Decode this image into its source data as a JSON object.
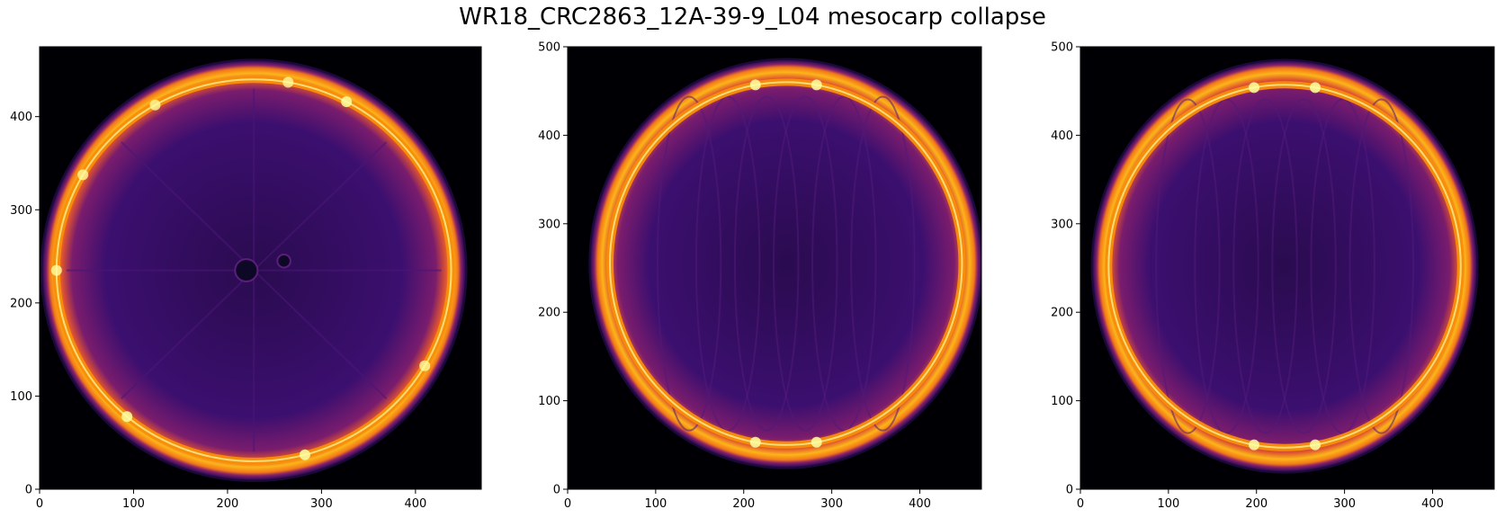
{
  "figure": {
    "title": "WR18_CRC2863_12A-39-9_L04 mesocarp collapse"
  },
  "chart_data": [
    {
      "type": "heatmap",
      "title": "",
      "xlabel": "",
      "ylabel": "",
      "xlim": [
        0,
        470
      ],
      "ylim": [
        0,
        475
      ],
      "xticks": [
        0,
        100,
        200,
        300,
        400
      ],
      "yticks": [
        0,
        100,
        200,
        300,
        400
      ],
      "colormap": "inferno",
      "background": "#000004",
      "shape": {
        "kind": "circle",
        "center": [
          228,
          235
        ],
        "rx": 225,
        "ry": 225,
        "rim_rx": 210,
        "rim_ry": 205,
        "rim_lobes": [
          {
            "angle_deg": 62,
            "value": 1.0
          },
          {
            "angle_deg": 80,
            "value": 0.9
          },
          {
            "angle_deg": 120,
            "value": 0.9
          },
          {
            "angle_deg": 150,
            "value": 0.9
          },
          {
            "angle_deg": 180,
            "value": 0.95
          },
          {
            "angle_deg": 230,
            "value": 1.0
          },
          {
            "angle_deg": 285,
            "value": 1.0
          },
          {
            "angle_deg": 330,
            "value": 0.9
          }
        ],
        "holes": [
          {
            "x": 220,
            "y": 235,
            "r": 12
          },
          {
            "x": 260,
            "y": 245,
            "r": 7
          }
        ]
      }
    },
    {
      "type": "heatmap",
      "title": "",
      "xlabel": "",
      "ylabel": "",
      "xlim": [
        0,
        470
      ],
      "ylim": [
        0,
        500
      ],
      "xticks": [
        0,
        100,
        200,
        300,
        400
      ],
      "yticks": [
        0,
        100,
        200,
        300,
        400,
        500
      ],
      "colormap": "inferno",
      "background": "#000004",
      "shape": {
        "kind": "ellipse",
        "center": [
          248,
          255
        ],
        "rx": 222,
        "ry": 230,
        "rim_rx": 200,
        "rim_ry": 205,
        "rim_lobes": [
          {
            "angle_deg": 80,
            "value": 1.0
          },
          {
            "angle_deg": 100,
            "value": 1.0
          },
          {
            "angle_deg": 260,
            "value": 1.0
          },
          {
            "angle_deg": 280,
            "value": 1.0
          }
        ],
        "holes": []
      }
    },
    {
      "type": "heatmap",
      "title": "",
      "xlabel": "",
      "ylabel": "",
      "xlim": [
        0,
        470
      ],
      "ylim": [
        0,
        500
      ],
      "xticks": [
        0,
        100,
        200,
        300,
        400
      ],
      "yticks": [
        0,
        100,
        200,
        300,
        400,
        500
      ],
      "colormap": "inferno",
      "background": "#000004",
      "shape": {
        "kind": "ellipse",
        "center": [
          232,
          252
        ],
        "rx": 218,
        "ry": 232,
        "rim_rx": 200,
        "rim_ry": 205,
        "rim_lobes": [
          {
            "angle_deg": 80,
            "value": 1.0
          },
          {
            "angle_deg": 100,
            "value": 1.0
          },
          {
            "angle_deg": 260,
            "value": 1.0
          },
          {
            "angle_deg": 280,
            "value": 1.0
          }
        ],
        "holes": []
      }
    }
  ]
}
